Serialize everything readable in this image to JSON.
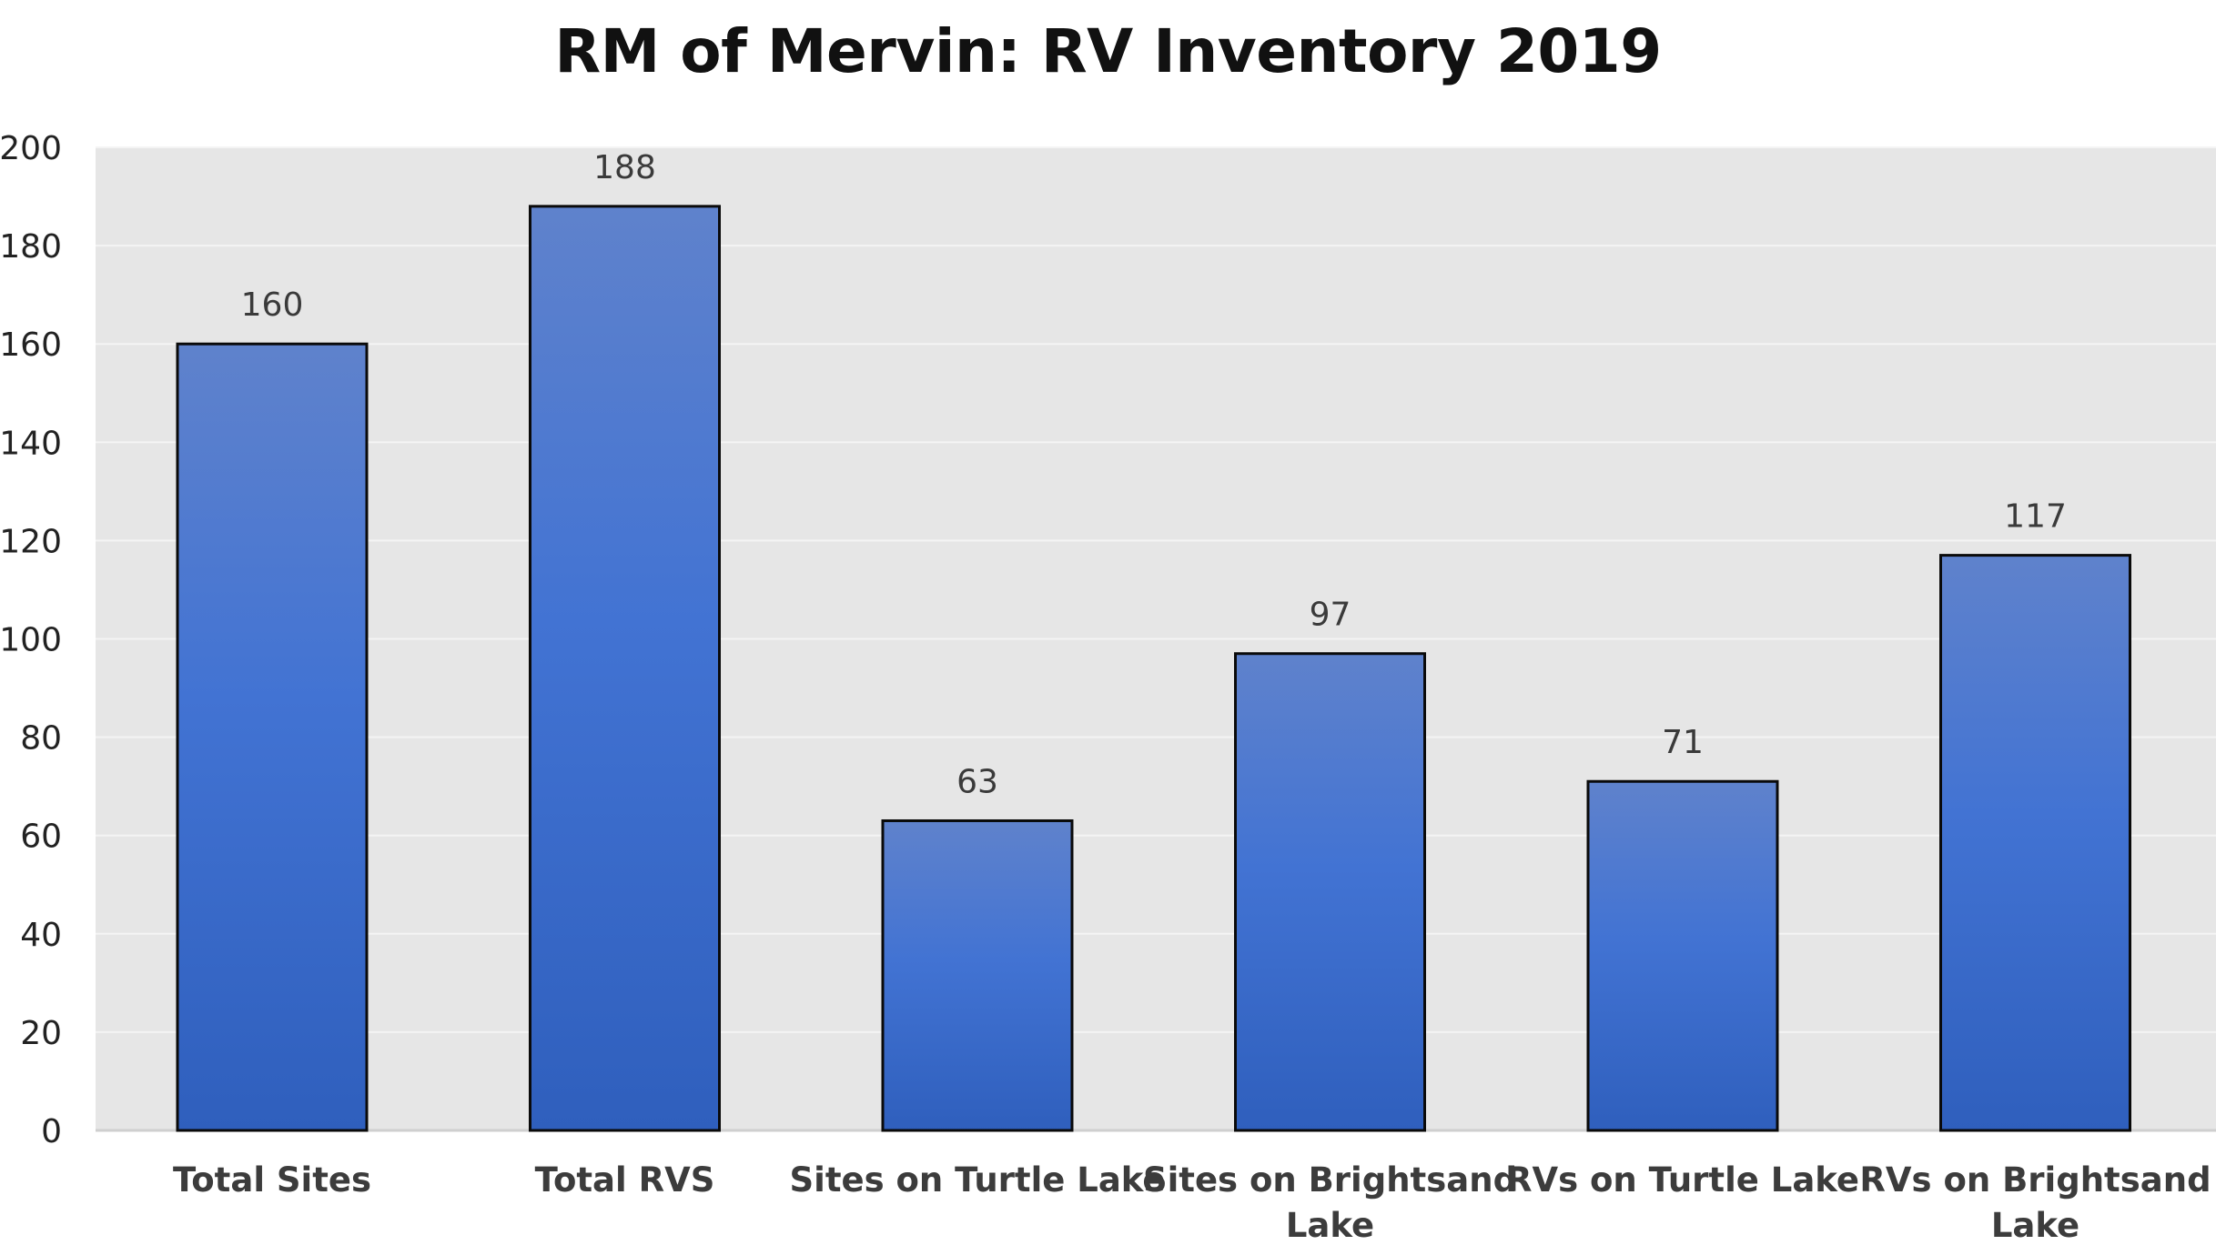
{
  "chart_data": {
    "type": "bar",
    "title": "RM of Mervin: RV Inventory 2019",
    "categories": [
      "Total Sites",
      "Total RVS",
      "Sites on Turtle Lake",
      "Sites on Brightsand Lake",
      "RVs on Turtle Lake",
      "RVs on Brightsand Lake"
    ],
    "category_lines": [
      [
        "Total Sites"
      ],
      [
        "Total RVS"
      ],
      [
        "Sites on Turtle Lake"
      ],
      [
        "Sites on Brightsand",
        "Lake"
      ],
      [
        "RVs on Turtle Lake"
      ],
      [
        "RVs on Brightsand",
        "Lake"
      ]
    ],
    "values": [
      160,
      188,
      63,
      97,
      71,
      117
    ],
    "data_labels": [
      "160",
      "188",
      "63",
      "97",
      "71",
      "117"
    ],
    "ylim": [
      0,
      200
    ],
    "yticks": [
      0,
      20,
      40,
      60,
      80,
      100,
      120,
      140,
      160,
      180,
      200
    ],
    "xlabel": "",
    "ylabel": "",
    "grid": true,
    "legend": "none",
    "colors": {
      "bar_top": "#5f82cc",
      "bar_mid": "#4273d3",
      "bar_bottom": "#2f5fbd",
      "bar_edge": "#0a0a0a",
      "plot_bg": "#e6e6e6",
      "grid": "#f4f4f4",
      "baseline": "#cfcfcf"
    }
  }
}
